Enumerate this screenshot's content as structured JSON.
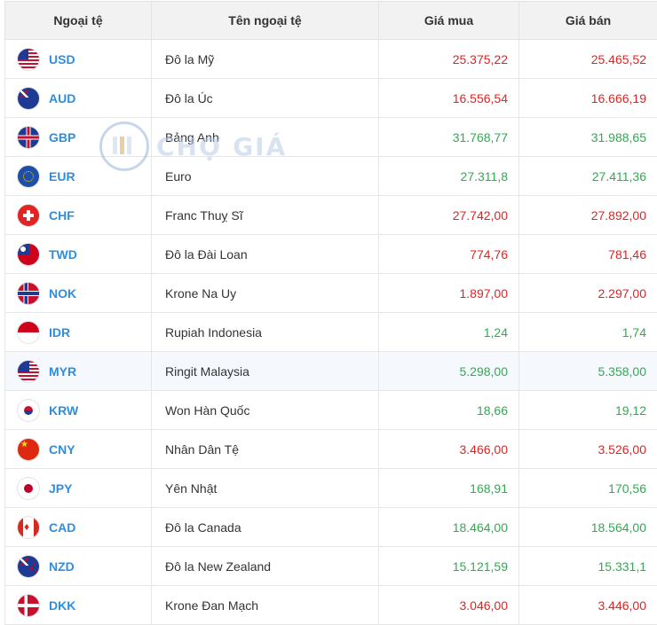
{
  "header": {
    "col_code": "Ngoại tệ",
    "col_name": "Tên ngoại tệ",
    "col_buy": "Giá mua",
    "col_sell": "Giá bán"
  },
  "watermark": {
    "text": "CHỢ GIÁ"
  },
  "colors": {
    "code": "#2d8ee0",
    "up": "#34a853",
    "down": "#e02424"
  },
  "rows": [
    {
      "code": "USD",
      "name": "Đô la Mỹ",
      "buy": "25.375,22",
      "sell": "25.465,52",
      "trend": "down",
      "flag": "us-flag-icon"
    },
    {
      "code": "AUD",
      "name": "Đô la Úc",
      "buy": "16.556,54",
      "sell": "16.666,19",
      "trend": "down",
      "flag": "au-flag-icon"
    },
    {
      "code": "GBP",
      "name": "Bảng Anh",
      "buy": "31.768,77",
      "sell": "31.988,65",
      "trend": "up",
      "flag": "gb-flag-icon"
    },
    {
      "code": "EUR",
      "name": "Euro",
      "buy": "27.311,8",
      "sell": "27.411,36",
      "trend": "up",
      "flag": "eu-flag-icon"
    },
    {
      "code": "CHF",
      "name": "Franc Thuỵ Sĩ",
      "buy": "27.742,00",
      "sell": "27.892,00",
      "trend": "down",
      "flag": "ch-flag-icon"
    },
    {
      "code": "TWD",
      "name": "Đô la Đài Loan",
      "buy": "774,76",
      "sell": "781,46",
      "trend": "down",
      "flag": "tw-flag-icon"
    },
    {
      "code": "NOK",
      "name": "Krone Na Uy",
      "buy": "1.897,00",
      "sell": "2.297,00",
      "trend": "down",
      "flag": "no-flag-icon"
    },
    {
      "code": "IDR",
      "name": "Rupiah Indonesia",
      "buy": "1,24",
      "sell": "1,74",
      "trend": "up",
      "flag": "id-flag-icon"
    },
    {
      "code": "MYR",
      "name": "Ringit Malaysia",
      "buy": "5.298,00",
      "sell": "5.358,00",
      "trend": "up",
      "flag": "my-flag-icon"
    },
    {
      "code": "KRW",
      "name": "Won Hàn Quốc",
      "buy": "18,66",
      "sell": "19,12",
      "trend": "up",
      "flag": "kr-flag-icon"
    },
    {
      "code": "CNY",
      "name": "Nhân Dân Tệ",
      "buy": "3.466,00",
      "sell": "3.526,00",
      "trend": "down",
      "flag": "cn-flag-icon"
    },
    {
      "code": "JPY",
      "name": "Yên Nhật",
      "buy": "168,91",
      "sell": "170,56",
      "trend": "up",
      "flag": "jp-flag-icon"
    },
    {
      "code": "CAD",
      "name": "Đô la Canada",
      "buy": "18.464,00",
      "sell": "18.564,00",
      "trend": "up",
      "flag": "ca-flag-icon"
    },
    {
      "code": "NZD",
      "name": "Đô la New Zealand",
      "buy": "15.121,59",
      "sell": "15.331,1",
      "trend": "up",
      "flag": "nz-flag-icon"
    },
    {
      "code": "DKK",
      "name": "Krone Đan Mạch",
      "buy": "3.046,00",
      "sell": "3.446,00",
      "trend": "down",
      "flag": "dk-flag-icon"
    }
  ]
}
